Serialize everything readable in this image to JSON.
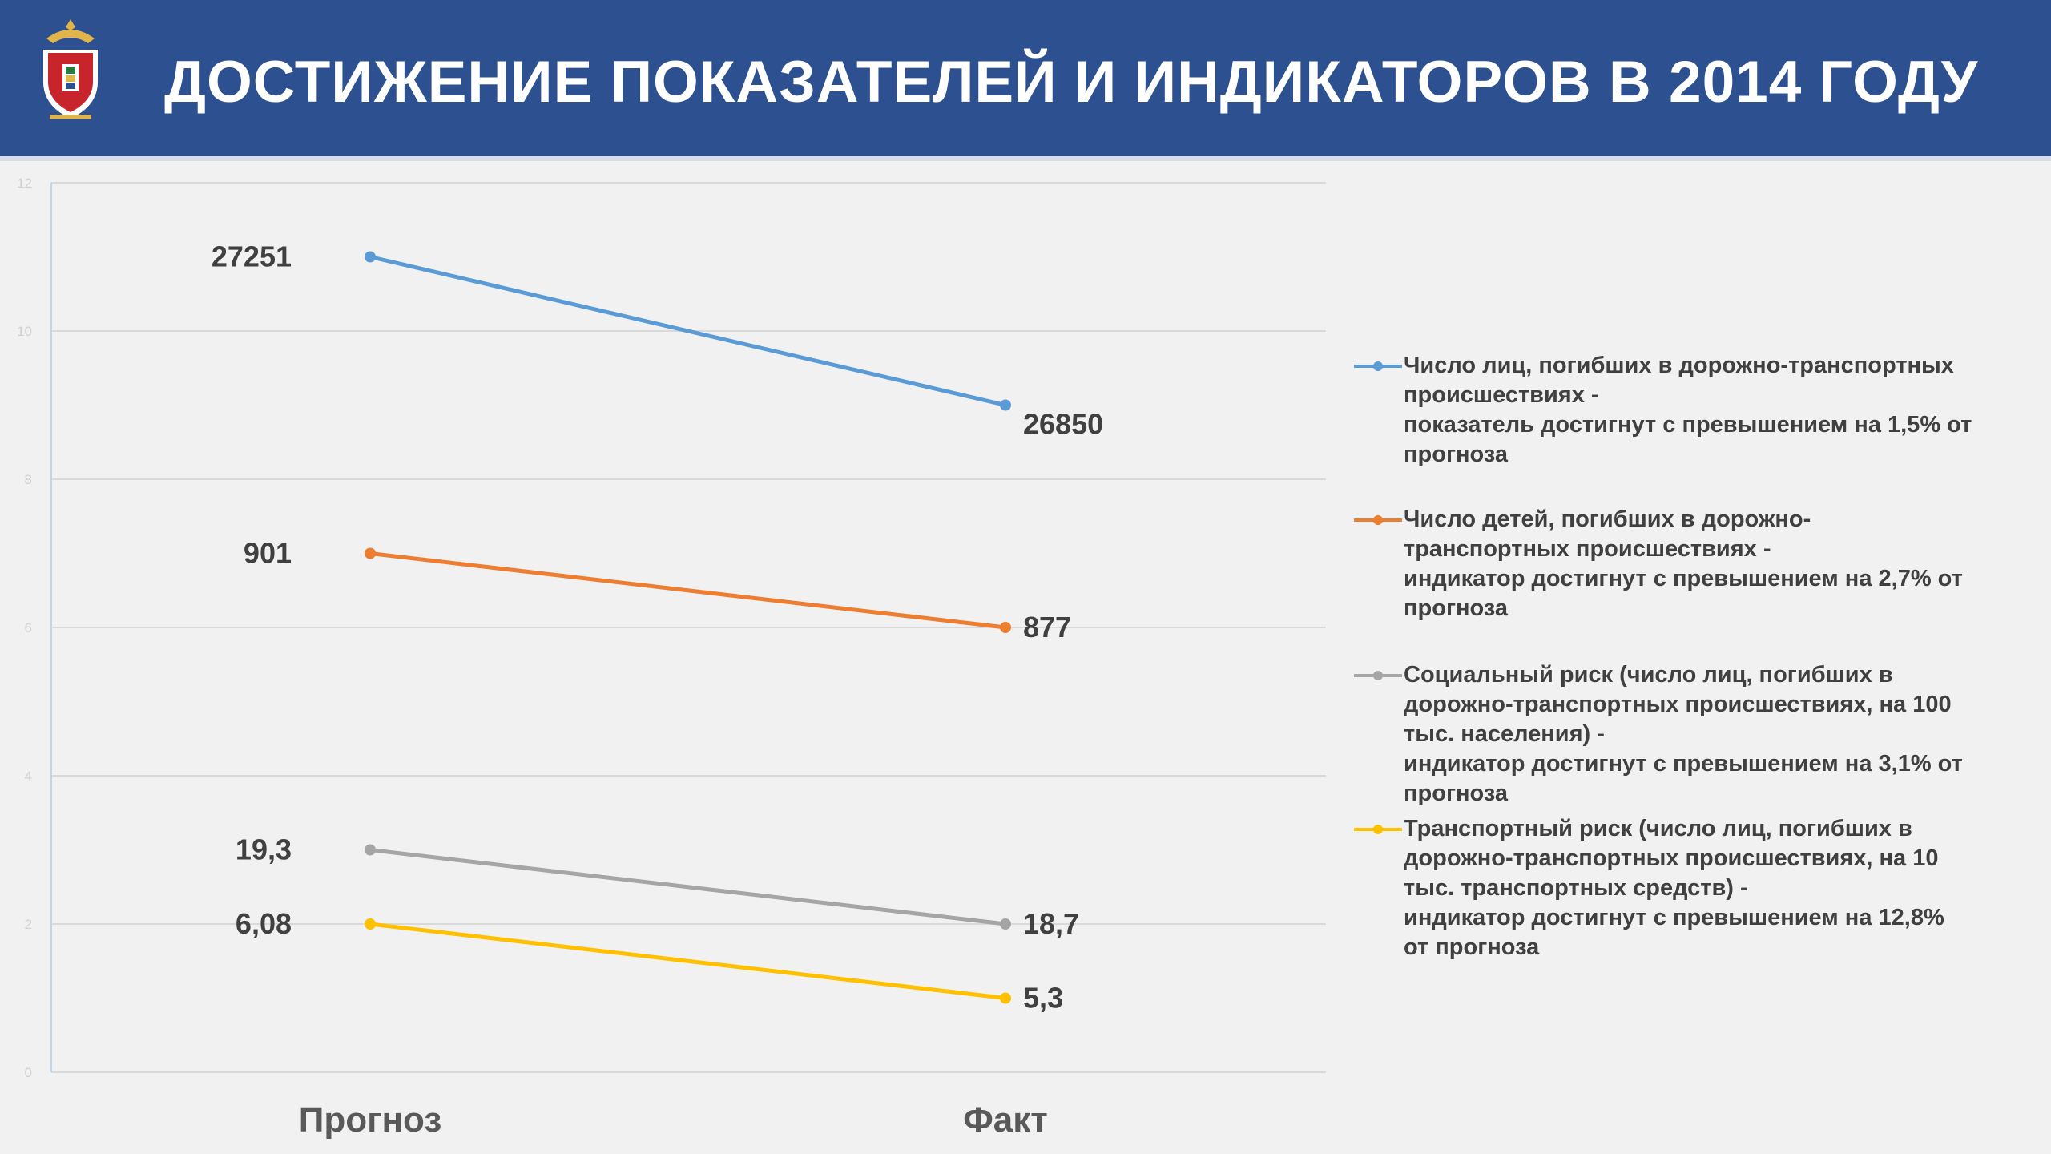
{
  "header": {
    "title": "ДОСТИЖЕНИЕ ПОКАЗАТЕЛЕЙ И ИНДИКАТОРОВ В 2014 ГОДУ",
    "colors": {
      "background": "#2d5091",
      "text": "#ffffff"
    },
    "emblem_icon": "police-emblem-icon"
  },
  "chart_data": {
    "type": "line",
    "categories": [
      "Прогноз",
      "Факт"
    ],
    "ylim": [
      0,
      12
    ],
    "yticks": [
      "0",
      "2",
      "4",
      "6",
      "8",
      "10",
      "12"
    ],
    "grid": true,
    "legend_position": "right",
    "series": [
      {
        "name_lines": [
          "Число лиц, погибших в дорожно-транспортных",
          "происшествиях -",
          "показатель достигнут с превышением на 1,5% от",
          "прогноза"
        ],
        "color": "#5b9bd5",
        "values": [
          11,
          9
        ],
        "labels": [
          "27251",
          "26850"
        ]
      },
      {
        "name_lines": [
          "Число детей, погибших в дорожно-",
          "транспортных происшествиях -",
          "индикатор достигнут с превышением на 2,7% от",
          "прогноза"
        ],
        "color": "#ed7d31",
        "values": [
          7,
          6
        ],
        "labels": [
          "901",
          "877"
        ]
      },
      {
        "name_lines": [
          "Социальный риск (число лиц, погибших в",
          "дорожно-транспортных происшествиях, на 100",
          "тыс. населения) -",
          "индикатор достигнут с превышением на 3,1% от",
          "прогноза"
        ],
        "color": "#a5a5a5",
        "values": [
          3,
          2
        ],
        "labels": [
          "19,3",
          "18,7"
        ]
      },
      {
        "name_lines": [
          "Транспортный риск (число лиц, погибших в",
          "дорожно-транспортных происшествиях, на 10",
          "тыс. транспортных средств) -",
          "индикатор достигнут с превышением на 12,8%",
          "от прогноза"
        ],
        "color": "#ffc000",
        "values": [
          2,
          1
        ],
        "labels": [
          "6,08",
          "5,3"
        ]
      }
    ]
  }
}
